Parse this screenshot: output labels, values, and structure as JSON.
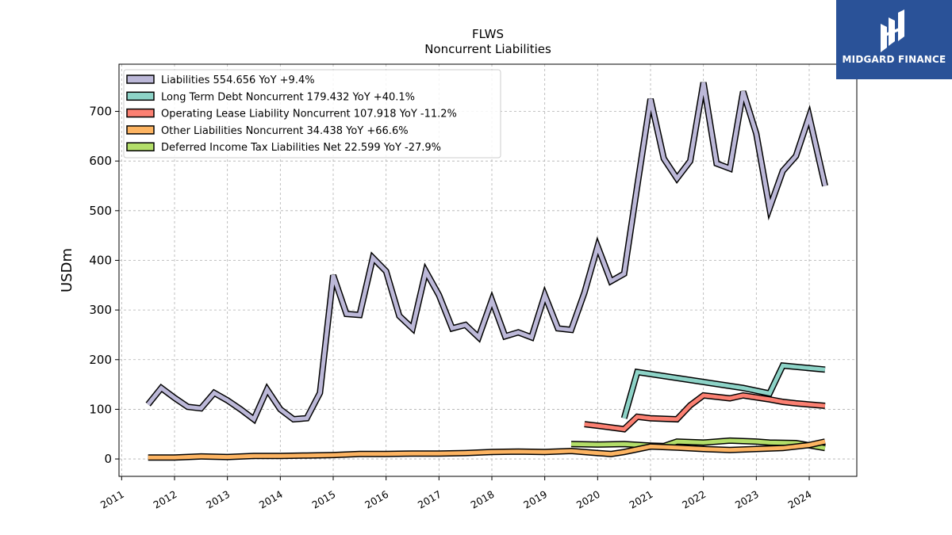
{
  "brand": {
    "name": "MIDGARD FINANCE",
    "background": "#2a5298"
  },
  "chart_data": {
    "type": "line",
    "title": "FLWS",
    "subtitle": "Noncurrent  Liabilities",
    "xlabel": "",
    "ylabel": "USDm",
    "xlim": [
      2010.95,
      2024.9
    ],
    "ylim": [
      -35,
      795
    ],
    "x_ticks": [
      "2011",
      "2012",
      "2013",
      "2014",
      "2015",
      "2016",
      "2017",
      "2018",
      "2019",
      "2020",
      "2021",
      "2022",
      "2023",
      "2024"
    ],
    "y_ticks": [
      0,
      100,
      200,
      300,
      400,
      500,
      600,
      700
    ],
    "grid": true,
    "legend_position": "top-left",
    "series": [
      {
        "name": "Liabilities  554.656 YoY +9.4%",
        "color": "#bcb8d8",
        "x": [
          2011.5,
          2011.75,
          2012.0,
          2012.25,
          2012.5,
          2012.75,
          2013.0,
          2013.25,
          2013.5,
          2013.75,
          2014.0,
          2014.25,
          2014.5,
          2014.75,
          2015.0,
          2015.25,
          2015.5,
          2015.75,
          2016.0,
          2016.25,
          2016.5,
          2016.75,
          2017.0,
          2017.25,
          2017.5,
          2017.75,
          2018.0,
          2018.25,
          2018.5,
          2018.75,
          2019.0,
          2019.25,
          2019.5,
          2019.75,
          2020.0,
          2020.25,
          2020.5,
          2020.75,
          2021.0,
          2021.25,
          2021.5,
          2021.75,
          2022.0,
          2022.25,
          2022.5,
          2022.75,
          2023.0,
          2023.25,
          2023.5,
          2023.75,
          2024.0,
          2024.3
        ],
        "values": [
          110,
          143,
          123,
          105,
          102,
          133,
          118,
          100,
          80,
          140,
          100,
          80,
          82,
          133,
          370,
          292,
          290,
          405,
          378,
          288,
          263,
          378,
          330,
          263,
          270,
          245,
          320,
          247,
          255,
          245,
          330,
          263,
          260,
          335,
          428,
          358,
          373,
          550,
          725,
          605,
          565,
          600,
          758,
          595,
          585,
          740,
          655,
          505,
          580,
          610,
          690,
          550
        ]
      },
      {
        "name": "Long Term Debt Noncurrent  179.432 YoY +40.1%",
        "color": "#8dd3c7",
        "x": [
          2020.5,
          2020.75,
          2022.75,
          2023.25,
          2023.5,
          2024.3
        ],
        "values": [
          82,
          175,
          143,
          132,
          188,
          180
        ]
      },
      {
        "name": "Operating Lease Liability Noncurrent  107.918 YoY -11.2%",
        "color": "#fb8072",
        "x": [
          2019.75,
          2020.0,
          2020.5,
          2020.75,
          2021.0,
          2021.5,
          2021.75,
          2022.0,
          2022.5,
          2022.75,
          2023.0,
          2023.25,
          2023.5,
          2023.75,
          2024.3
        ],
        "values": [
          70,
          67,
          60,
          85,
          82,
          80,
          108,
          128,
          122,
          128,
          124,
          120,
          115,
          112,
          107
        ]
      },
      {
        "name": "Other Liabilities Noncurrent  34.438 YoY +66.6%",
        "color": "#fdb462",
        "x": [
          2011.5,
          2012.0,
          2012.5,
          2013.0,
          2013.5,
          2014.0,
          2014.5,
          2015.0,
          2015.5,
          2016.0,
          2016.5,
          2017.0,
          2017.5,
          2018.0,
          2018.5,
          2019.0,
          2019.5,
          2020.0,
          2020.25,
          2020.5,
          2021.0,
          2021.5,
          2022.0,
          2022.5,
          2023.0,
          2023.5,
          2024.0,
          2024.3
        ],
        "values": [
          3,
          3,
          5,
          4,
          6,
          6,
          7,
          8,
          10,
          10,
          11,
          11,
          12,
          14,
          15,
          14,
          16,
          12,
          10,
          14,
          25,
          23,
          20,
          18,
          20,
          22,
          28,
          35
        ]
      },
      {
        "name": "Deferred Income Tax Liabilities Net  22.599 YoY -27.9%",
        "color": "#b3de69",
        "x": [
          2019.5,
          2020.0,
          2020.5,
          2021.0,
          2021.25,
          2021.5,
          2022.0,
          2022.5,
          2023.0,
          2023.25,
          2023.75,
          2024.3
        ],
        "values": [
          30,
          29,
          30,
          27,
          26,
          35,
          33,
          37,
          35,
          33,
          32,
          22
        ]
      }
    ]
  }
}
